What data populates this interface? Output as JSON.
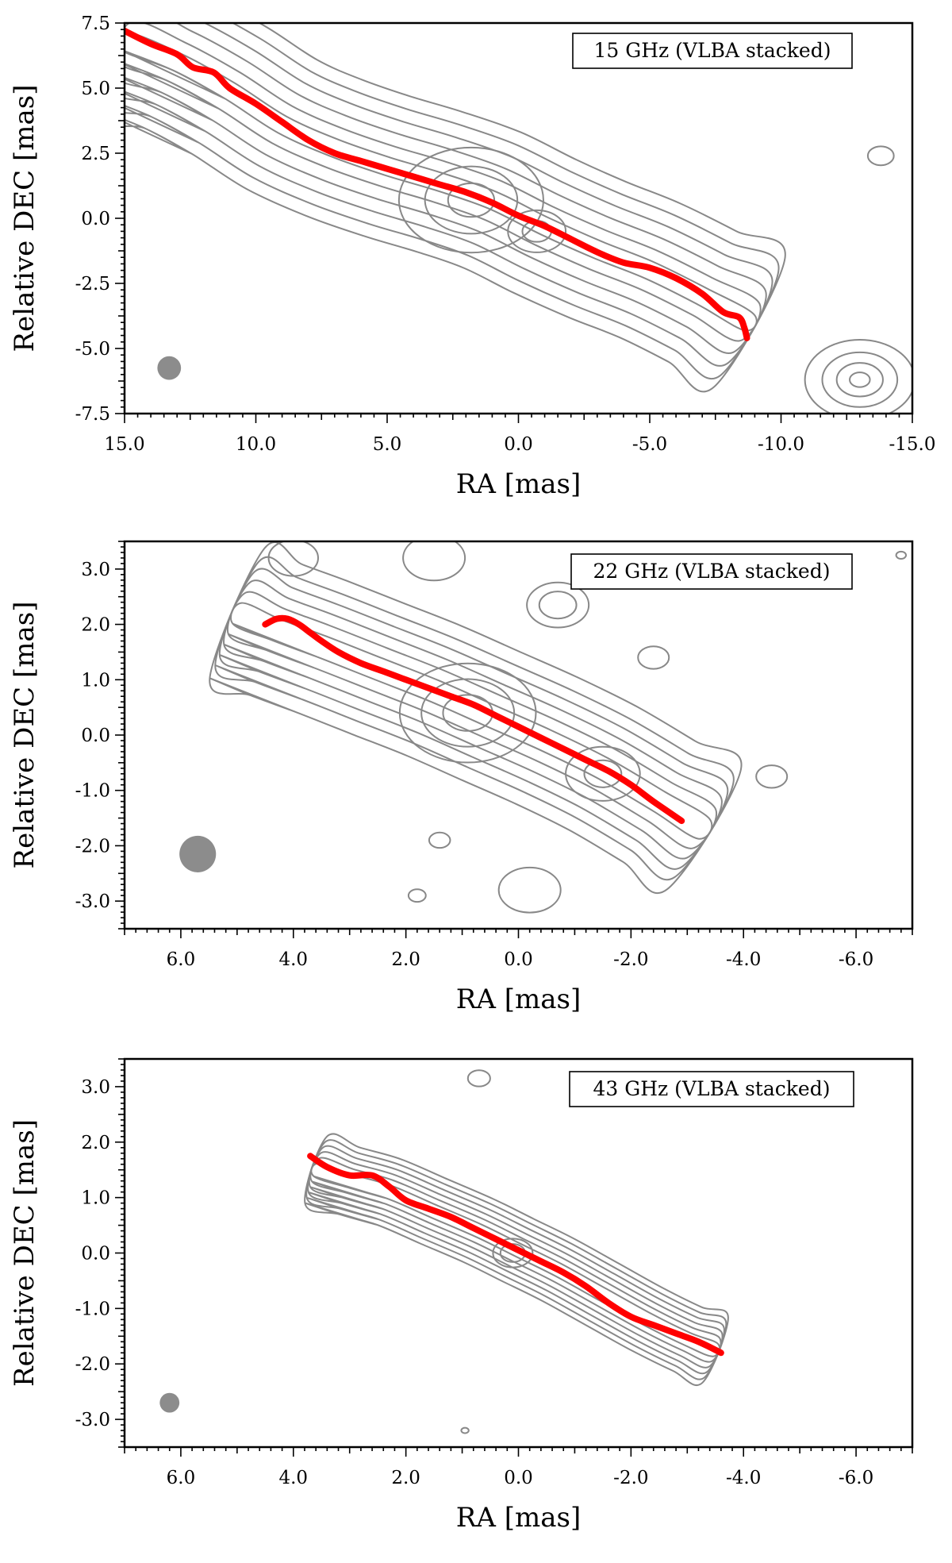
{
  "chart_data": [
    {
      "type": "scatter",
      "legend": "15 GHz (VLBA stacked)",
      "legend_placement": "top-right",
      "xlabel": "RA [mas]",
      "ylabel": "Relative DEC [mas]",
      "xlim": [
        15.0,
        -15.0
      ],
      "ylim": [
        -7.5,
        7.5
      ],
      "xticks": [
        15.0,
        10.0,
        5.0,
        0.0,
        -5.0,
        -10.0,
        -15.0
      ],
      "xtick_labels": [
        "15.0",
        "10.0",
        "5.0",
        "0.0",
        "-5.0",
        "-10.0",
        "-15.0"
      ],
      "yticks": [
        7.5,
        5.0,
        2.5,
        0.0,
        -2.5,
        -5.0,
        -7.5
      ],
      "ytick_labels": [
        "7.5",
        "5.0",
        "2.5",
        "0.0",
        "-2.5",
        "-5.0",
        "-7.5"
      ],
      "beam": {
        "x": 13.3,
        "y": -5.75,
        "diameter_mas": 0.9
      },
      "ridge_line": {
        "x": [
          15.0,
          14.0,
          13.0,
          12.4,
          11.6,
          11.0,
          10.0,
          9.0,
          8.0,
          7.0,
          6.0,
          5.0,
          4.0,
          3.0,
          2.0,
          1.0,
          0.0,
          -1.0,
          -2.0,
          -3.0,
          -4.0,
          -5.0,
          -6.0,
          -7.0,
          -7.8,
          -8.4,
          -8.6,
          -8.7
        ],
        "y": [
          7.2,
          6.7,
          6.3,
          5.8,
          5.6,
          5.0,
          4.4,
          3.7,
          3.0,
          2.5,
          2.2,
          1.9,
          1.6,
          1.3,
          1.0,
          0.6,
          0.1,
          -0.3,
          -0.8,
          -1.3,
          -1.7,
          -1.9,
          -2.3,
          -2.9,
          -3.6,
          -3.8,
          -4.2,
          -4.6
        ]
      },
      "contour_ridge": {
        "x": [
          15.0,
          13.0,
          11.0,
          9.0,
          7.0,
          5.0,
          3.0,
          1.0,
          -1.0,
          -3.0,
          -5.0,
          -7.0,
          -8.8
        ],
        "y": [
          6.8,
          6.0,
          4.9,
          3.6,
          2.7,
          2.0,
          1.4,
          0.7,
          -0.3,
          -1.2,
          -2.0,
          -3.0,
          -4.0
        ]
      },
      "contour_halfwidths": [
        0.35,
        0.8,
        1.3,
        1.8,
        2.3,
        2.8
      ],
      "blobs": [
        {
          "x": -13.0,
          "y": -6.2,
          "rx": [
            0.35,
            0.8,
            1.3,
            1.9
          ]
        },
        {
          "x": -13.8,
          "y": 2.4,
          "rx": [
            0.45
          ]
        },
        {
          "x": 1.8,
          "y": 0.7,
          "rx": [
            0.8,
            1.6,
            2.5
          ]
        },
        {
          "x": -0.7,
          "y": -0.5,
          "rx": [
            0.5,
            1.0
          ]
        }
      ]
    },
    {
      "type": "scatter",
      "legend": "22 GHz (VLBA stacked)",
      "legend_placement": "top-right",
      "xlabel": "RA [mas]",
      "ylabel": "Relative DEC [mas]",
      "xlim": [
        7.0,
        -7.0
      ],
      "ylim": [
        -3.5,
        3.5
      ],
      "xticks": [
        6.0,
        4.0,
        2.0,
        0.0,
        -2.0,
        -4.0,
        -6.0
      ],
      "xtick_labels": [
        "6.0",
        "4.0",
        "2.0",
        "0.0",
        "-2.0",
        "-4.0",
        "-6.0"
      ],
      "yticks": [
        3.0,
        2.0,
        1.0,
        0.0,
        -1.0,
        -2.0,
        -3.0
      ],
      "ytick_labels": [
        "3.0",
        "2.0",
        "1.0",
        "0.0",
        "-1.0",
        "-2.0",
        "-3.0"
      ],
      "beam": {
        "x": 5.7,
        "y": -2.15,
        "diameter_mas": 0.65
      },
      "ridge_line": {
        "x": [
          4.5,
          4.3,
          4.1,
          3.9,
          3.7,
          3.5,
          3.2,
          2.8,
          2.4,
          2.0,
          1.6,
          1.2,
          0.8,
          0.4,
          0.0,
          -0.4,
          -0.8,
          -1.2,
          -1.6,
          -2.0,
          -2.4,
          -2.9
        ],
        "y": [
          2.0,
          2.1,
          2.1,
          2.0,
          1.85,
          1.7,
          1.5,
          1.3,
          1.15,
          1.0,
          0.85,
          0.7,
          0.55,
          0.35,
          0.15,
          -0.05,
          -0.25,
          -0.45,
          -0.65,
          -0.9,
          -1.2,
          -1.55
        ]
      },
      "contour_ridge": {
        "x": [
          5.0,
          4.3,
          3.5,
          2.5,
          1.5,
          0.5,
          -0.5,
          -1.5,
          -2.5,
          -3.3
        ],
        "y": [
          2.2,
          1.9,
          1.6,
          1.2,
          0.8,
          0.35,
          -0.1,
          -0.6,
          -1.2,
          -1.7
        ]
      },
      "contour_halfwidths": [
        0.2,
        0.4,
        0.6,
        0.8,
        1.0,
        1.25
      ],
      "blobs": [
        {
          "x": 0.9,
          "y": 0.4,
          "rx": [
            0.4,
            0.75,
            1.1
          ]
        },
        {
          "x": -1.5,
          "y": -0.7,
          "rx": [
            0.3,
            0.6
          ]
        },
        {
          "x": -0.7,
          "y": 2.35,
          "rx": [
            0.3,
            0.5
          ]
        },
        {
          "x": 1.5,
          "y": 3.2,
          "rx": [
            0.5
          ]
        },
        {
          "x": 4.0,
          "y": 3.2,
          "rx": [
            0.4
          ]
        },
        {
          "x": -2.4,
          "y": 1.4,
          "rx": [
            0.25
          ]
        },
        {
          "x": -4.5,
          "y": -0.75,
          "rx": [
            0.25
          ]
        },
        {
          "x": 1.4,
          "y": -1.9,
          "rx": [
            0.17
          ]
        },
        {
          "x": 1.8,
          "y": -2.9,
          "rx": [
            0.14
          ]
        },
        {
          "x": -0.2,
          "y": -2.8,
          "rx": [
            0.5
          ]
        },
        {
          "x": -6.8,
          "y": 3.25,
          "rx": [
            0.08
          ]
        }
      ]
    },
    {
      "type": "scatter",
      "legend": "43 GHz (VLBA stacked)",
      "legend_placement": "top-right",
      "xlabel": "RA [mas]",
      "ylabel": "Relative DEC [mas]",
      "xlim": [
        7.0,
        -7.0
      ],
      "ylim": [
        -3.5,
        3.5
      ],
      "xticks": [
        6.0,
        4.0,
        2.0,
        0.0,
        -2.0,
        -4.0,
        -6.0
      ],
      "xtick_labels": [
        "6.0",
        "4.0",
        "2.0",
        "0.0",
        "-2.0",
        "-4.0",
        "-6.0"
      ],
      "yticks": [
        3.0,
        2.0,
        1.0,
        0.0,
        -1.0,
        -2.0,
        -3.0
      ],
      "ytick_labels": [
        "3.0",
        "2.0",
        "1.0",
        "0.0",
        "-1.0",
        "-2.0",
        "-3.0"
      ],
      "beam": {
        "x": 6.2,
        "y": -2.7,
        "diameter_mas": 0.35
      },
      "ridge_line": {
        "x": [
          3.7,
          3.4,
          3.0,
          2.6,
          2.3,
          2.0,
          1.6,
          1.2,
          0.8,
          0.4,
          0.0,
          -0.4,
          -0.8,
          -1.2,
          -1.6,
          -2.0,
          -2.4,
          -2.8,
          -3.2,
          -3.6
        ],
        "y": [
          1.75,
          1.55,
          1.4,
          1.4,
          1.2,
          0.95,
          0.8,
          0.65,
          0.45,
          0.25,
          0.05,
          -0.15,
          -0.35,
          -0.6,
          -0.9,
          -1.15,
          -1.3,
          -1.45,
          -1.6,
          -1.8
        ]
      },
      "contour_ridge": {
        "x": [
          3.6,
          3.0,
          2.3,
          1.5,
          0.7,
          0.0,
          -0.7,
          -1.5,
          -2.3,
          -3.0,
          -3.5
        ],
        "y": [
          1.5,
          1.3,
          1.1,
          0.75,
          0.4,
          0.05,
          -0.3,
          -0.75,
          -1.2,
          -1.55,
          -1.75
        ]
      },
      "contour_halfwidths": [
        0.12,
        0.22,
        0.32,
        0.42,
        0.52,
        0.62
      ],
      "blobs": [
        {
          "x": 0.1,
          "y": 0.0,
          "rx": [
            0.2,
            0.32
          ]
        },
        {
          "x": 0.7,
          "y": 3.15,
          "rx": [
            0.18
          ]
        },
        {
          "x": 0.95,
          "y": -3.2,
          "rx": [
            0.06
          ]
        }
      ]
    }
  ]
}
